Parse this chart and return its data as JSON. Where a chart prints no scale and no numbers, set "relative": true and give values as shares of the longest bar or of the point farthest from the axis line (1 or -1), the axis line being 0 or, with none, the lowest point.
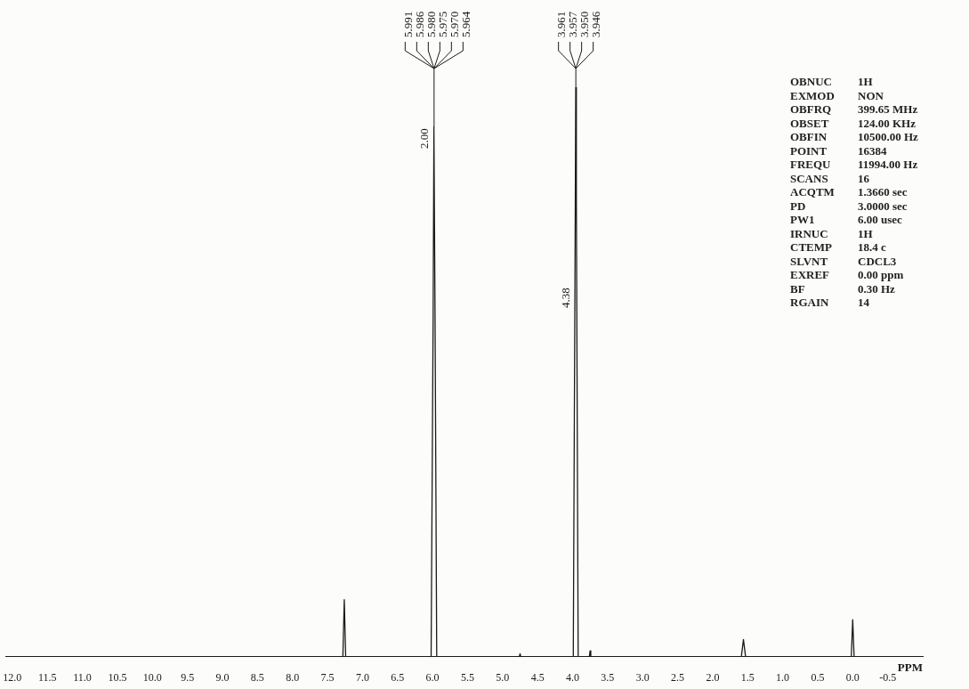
{
  "chart_data": {
    "type": "line",
    "relative": true,
    "xlabel": "PPM",
    "x": [
      12.1,
      7.28,
      7.26,
      7.24,
      6.02,
      5.991,
      5.98,
      5.964,
      5.94,
      4.76,
      4.75,
      4.74,
      3.99,
      3.961,
      3.955,
      3.946,
      3.92,
      3.76,
      3.75,
      3.74,
      1.59,
      1.56,
      1.53,
      0.02,
      0,
      -0.02,
      -1.0
    ],
    "series": [
      {
        "color": "#1a1a1a",
        "values": [
          0,
          0,
          0.1,
          0,
          0,
          0.6,
          0.93,
          0.6,
          0,
          0,
          0.005,
          0,
          0,
          0.8,
          1,
          0.8,
          0,
          0,
          0.01,
          0,
          0,
          0.03,
          0,
          0,
          0.065,
          0,
          0
        ]
      }
    ],
    "xlim": [
      12.1,
      -1.0
    ],
    "xticks": [
      {
        "value": 12,
        "label": "12.0"
      },
      11.5,
      {
        "value": 11,
        "label": "11.0"
      },
      10.5,
      {
        "value": 10,
        "label": "10.0"
      },
      9.5,
      {
        "value": 9,
        "label": "9.0"
      },
      8.5,
      {
        "value": 8,
        "label": "8.0"
      },
      7.5,
      {
        "value": 7,
        "label": "7.0"
      },
      6.5,
      {
        "value": 6,
        "label": "6.0"
      },
      5.5,
      {
        "value": 5,
        "label": "5.0"
      },
      4.5,
      {
        "value": 4,
        "label": "4.0"
      },
      3.5,
      {
        "value": 3,
        "label": "3.0"
      },
      2.5,
      {
        "value": 2,
        "label": "2.0"
      },
      1.5,
      {
        "value": 1,
        "label": "1.0"
      },
      0.5,
      {
        "value": 0,
        "label": "0.0"
      },
      -0.5
    ],
    "grid": false,
    "legend": false,
    "tick_labels": "x",
    "marker": "none",
    "line_style": "solid",
    "annotations": [
      {
        "text": "5.991",
        "x": 5.991
      },
      {
        "text": "5.986",
        "x": 5.986
      },
      {
        "text": "5.980",
        "x": 5.98
      },
      {
        "text": "5.975",
        "x": 5.975
      },
      {
        "text": "5.970",
        "x": 5.97
      },
      {
        "text": "5.964",
        "x": 5.964
      },
      {
        "text": "3.961",
        "x": 3.961
      },
      {
        "text": "3.957",
        "x": 3.957
      },
      {
        "text": "3.950",
        "x": 3.95
      },
      {
        "text": "3.946",
        "x": 3.946
      },
      {
        "text": "2.00",
        "x": 5.98,
        "y": 0.91
      },
      {
        "text": "4.38",
        "x": 3.955,
        "y": 0.63
      },
      "OBNUC 1H",
      "EXMOD NON",
      "OBFRQ 399.65 MHz",
      "OBSET 124.00 KHz",
      "OBFIN 10500.00 Hz",
      "POINT 16384",
      "FREQU 11994.00 Hz",
      "SCANS 16",
      "ACQTM 1.3660 sec",
      "PD 3.0000 sec",
      "PW1 6.00 usec",
      "IRNUC 1H",
      "CTEMP 18.4 c",
      "SLVNT CDCL3",
      "EXREF 0.00 ppm",
      "BF 0.30 Hz",
      "RGAIN 14"
    ]
  }
}
